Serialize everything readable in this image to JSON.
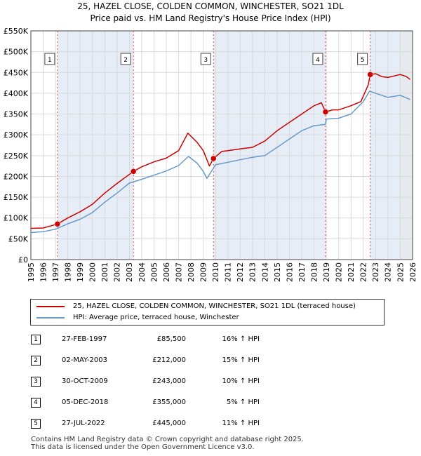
{
  "chart_data": {
    "type": "line",
    "title": "25, HAZEL CLOSE, COLDEN COMMON, WINCHESTER, SO21 1DL",
    "subtitle": "Price paid vs. HM Land Registry's House Price Index (HPI)",
    "xlim": [
      1995,
      2026
    ],
    "ylim": [
      0,
      550000
    ],
    "x_ticks": [
      1995,
      1996,
      1997,
      1998,
      1999,
      2000,
      2001,
      2002,
      2003,
      2004,
      2005,
      2006,
      2007,
      2008,
      2009,
      2010,
      2011,
      2012,
      2013,
      2014,
      2015,
      2016,
      2017,
      2018,
      2019,
      2020,
      2021,
      2022,
      2023,
      2024,
      2025,
      2026
    ],
    "x_tick_labels": [
      "1995",
      "1996",
      "1997",
      "1998",
      "1999",
      "2000",
      "2001",
      "2002",
      "2003",
      "2004",
      "2005",
      "2006",
      "2007",
      "2008",
      "2009",
      "2010",
      "2011",
      "2012",
      "2013",
      "2014",
      "2015",
      "2016",
      "2017",
      "2018",
      "2019",
      "2020",
      "2021",
      "2022",
      "2023",
      "2024",
      "2025",
      "2026"
    ],
    "y_ticks": [
      0,
      50000,
      100000,
      150000,
      200000,
      250000,
      300000,
      350000,
      400000,
      450000,
      500000,
      550000
    ],
    "y_tick_labels": [
      "£0",
      "£50K",
      "£100K",
      "£150K",
      "£200K",
      "£250K",
      "£300K",
      "£350K",
      "£400K",
      "£450K",
      "£500K",
      "£550K"
    ],
    "grid": true,
    "series": [
      {
        "name": "25, HAZEL CLOSE, COLDEN COMMON, WINCHESTER, SO21 1DL (terraced house)",
        "color": "#cc0000",
        "x": [
          1995,
          1996,
          1997.16,
          1998,
          1999,
          2000,
          2001,
          2002,
          2003.33,
          2004,
          2005,
          2006,
          2007,
          2007.75,
          2008.5,
          2009,
          2009.5,
          2009.83,
          2010.5,
          2011,
          2012,
          2013,
          2014,
          2015,
          2016,
          2017,
          2017.6,
          2018,
          2018.6,
          2018.93,
          2019.5,
          2020,
          2021,
          2021.8,
          2022.4,
          2022.56,
          2023,
          2023.5,
          2024,
          2025,
          2025.5,
          2025.8
        ],
        "y": [
          75000,
          76000,
          85500,
          100000,
          115000,
          133000,
          160000,
          183000,
          212000,
          223000,
          235000,
          244000,
          262000,
          304000,
          282000,
          262000,
          225000,
          243000,
          260000,
          262000,
          266000,
          270000,
          285000,
          310000,
          330000,
          350000,
          362000,
          370000,
          377000,
          355000,
          360000,
          360000,
          370000,
          380000,
          420000,
          445000,
          447000,
          440000,
          438000,
          445000,
          440000,
          433000
        ]
      },
      {
        "name": "HPI: Average price, terraced house, Winchester",
        "color": "#6699cc",
        "x": [
          1995,
          1996,
          1997,
          1998,
          1999,
          2000,
          2001,
          2002,
          2003,
          2004,
          2005,
          2006,
          2007,
          2007.8,
          2008.5,
          2009,
          2009.3,
          2010,
          2011,
          2012,
          2013,
          2014,
          2015,
          2016,
          2017,
          2018,
          2018.9,
          2019,
          2020,
          2021,
          2022,
          2022.5,
          2023,
          2024,
          2025,
          2025.8
        ],
        "y": [
          65000,
          67000,
          73000,
          86000,
          97000,
          113000,
          138000,
          160000,
          184000,
          193000,
          203000,
          213000,
          226000,
          248000,
          232000,
          212000,
          195000,
          228000,
          234000,
          240000,
          246000,
          250000,
          270000,
          290000,
          310000,
          322000,
          325000,
          338000,
          340000,
          350000,
          380000,
          405000,
          400000,
          390000,
          395000,
          385000
        ]
      }
    ],
    "transactions": [
      {
        "label": "1",
        "date": "27-FEB-1997",
        "x": 1997.16,
        "price_value": 85500,
        "price": "£85,500",
        "hpi": "16% ↑ HPI"
      },
      {
        "label": "2",
        "date": "02-MAY-2003",
        "x": 2003.33,
        "price_value": 212000,
        "price": "£212,000",
        "hpi": "15% ↑ HPI"
      },
      {
        "label": "3",
        "date": "30-OCT-2009",
        "x": 2009.83,
        "price_value": 243000,
        "price": "£243,000",
        "hpi": "10% ↑ HPI"
      },
      {
        "label": "4",
        "date": "05-DEC-2018",
        "x": 2018.93,
        "price_value": 355000,
        "price": "£355,000",
        "hpi": "5% ↑ HPI"
      },
      {
        "label": "5",
        "date": "27-JUL-2022",
        "x": 2022.56,
        "price_value": 445000,
        "price": "£445,000",
        "hpi": "11% ↑ HPI"
      }
    ]
  },
  "footer": {
    "line1": "Contains HM Land Registry data © Crown copyright and database right 2025.",
    "line2": "This data is licensed under the Open Government Licence v3.0."
  }
}
